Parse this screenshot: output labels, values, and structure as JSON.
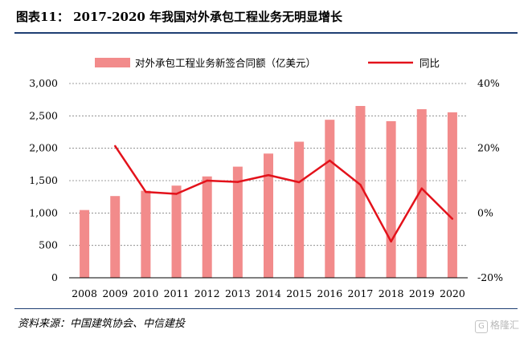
{
  "header": {
    "title": "图表11： 2017-2020 年我国对外承包工程业务无明显增长"
  },
  "footer": {
    "source": "资料来源：中国建筑协会、中信建投",
    "watermark_badge": "G",
    "watermark": "格隆汇"
  },
  "colors": {
    "bar": "#f28b8b",
    "line": "#e3121b",
    "rule": "#1f3f73"
  },
  "chart_data": {
    "type": "bar",
    "categories": [
      "2008",
      "2009",
      "2010",
      "2011",
      "2012",
      "2013",
      "2014",
      "2015",
      "2016",
      "2017",
      "2018",
      "2019",
      "2020"
    ],
    "series": [
      {
        "name": "对外承包工程业务新签合同额（亿美元）",
        "type": "bar",
        "axis": "left",
        "values": [
          1046,
          1262,
          1344,
          1423,
          1565,
          1716,
          1918,
          2101,
          2440,
          2653,
          2418,
          2603,
          2555
        ]
      },
      {
        "name": "同比",
        "type": "line",
        "axis": "right",
        "values": [
          null,
          20.7,
          6.5,
          5.9,
          10.0,
          9.6,
          11.7,
          9.5,
          16.2,
          8.7,
          -8.8,
          7.6,
          -1.8
        ]
      }
    ],
    "left_axis": {
      "ylim": [
        0,
        3000
      ],
      "ticks": [
        "0",
        "500",
        "1,000",
        "1,500",
        "2,000",
        "2,500",
        "3,000"
      ]
    },
    "right_axis": {
      "ylim": [
        -20,
        40
      ],
      "ticks": [
        "-20%",
        "0%",
        "20%",
        "40%"
      ]
    },
    "legend": {
      "placement": "top"
    },
    "grid": true
  }
}
